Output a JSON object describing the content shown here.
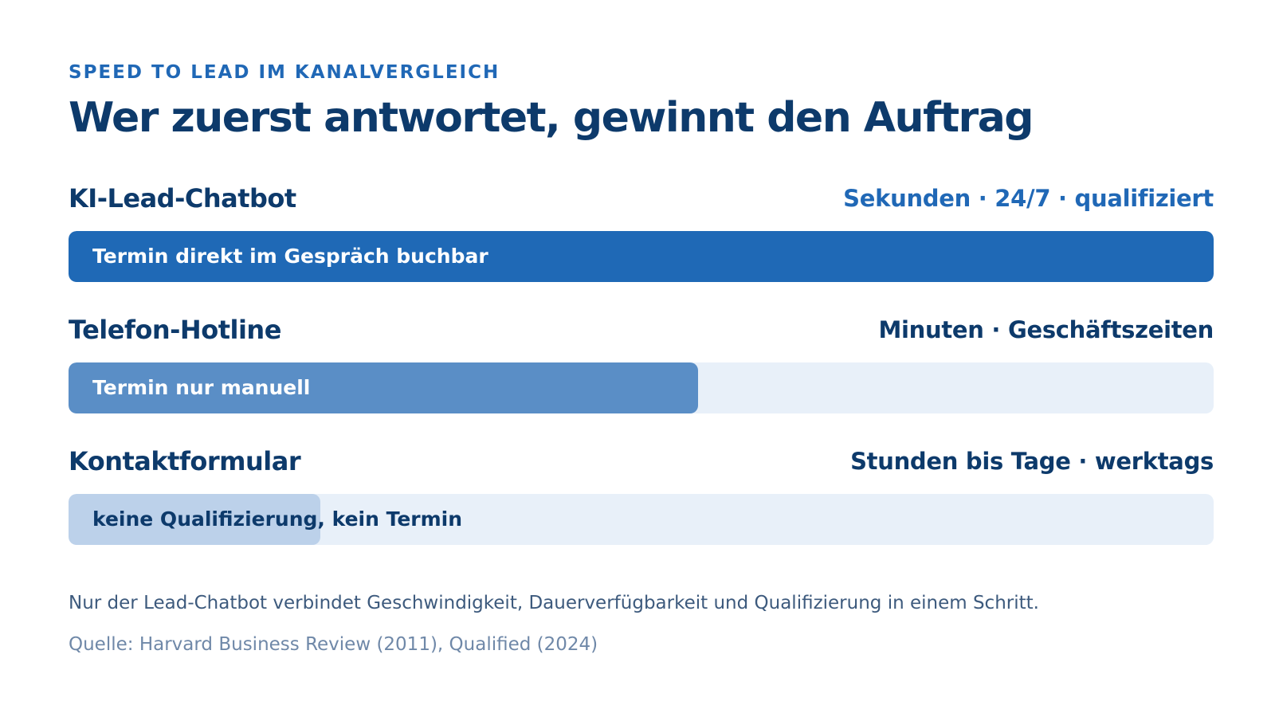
{
  "eyebrow": "SPEED TO LEAD IM KANALVERGLEICH",
  "title": "Wer zuerst antwortet, gewinnt den Auftrag",
  "colors": {
    "title": "#0d3a6b",
    "accent": "#2068b6",
    "track": "#e8f0f9"
  },
  "chart_data": {
    "type": "bar",
    "orientation": "horizontal",
    "xlim": [
      0,
      1
    ],
    "bars": [
      {
        "name": "KI-Lead-Chatbot",
        "meta": "Sekunden · 24/7 · qualifiziert",
        "label": "Termin direkt im Gespräch buchbar",
        "value": 1.0,
        "fill_color": "#1f69b6",
        "meta_color": "#2068b6",
        "label_color": "#ffffff"
      },
      {
        "name": "Telefon-Hotline",
        "meta": "Minuten · Geschäftszeiten",
        "label": "Termin nur manuell",
        "value": 0.55,
        "fill_color": "#5a8ec6",
        "meta_color": "#0d3a6b",
        "label_color": "#ffffff"
      },
      {
        "name": "Kontaktformular",
        "meta": "Stunden bis Tage · werktags",
        "label": "keine Qualifizierung, kein Termin",
        "value": 0.22,
        "fill_color": "#bcd1ea",
        "meta_color": "#0d3a6b",
        "label_color": "#0d3a6b"
      }
    ]
  },
  "note": "Nur der Lead-Chatbot verbindet Geschwindigkeit, Dauerverfügbarkeit und Qualifizierung in einem Schritt.",
  "source": "Quelle: Harvard Business Review (2011), Qualified (2024)"
}
